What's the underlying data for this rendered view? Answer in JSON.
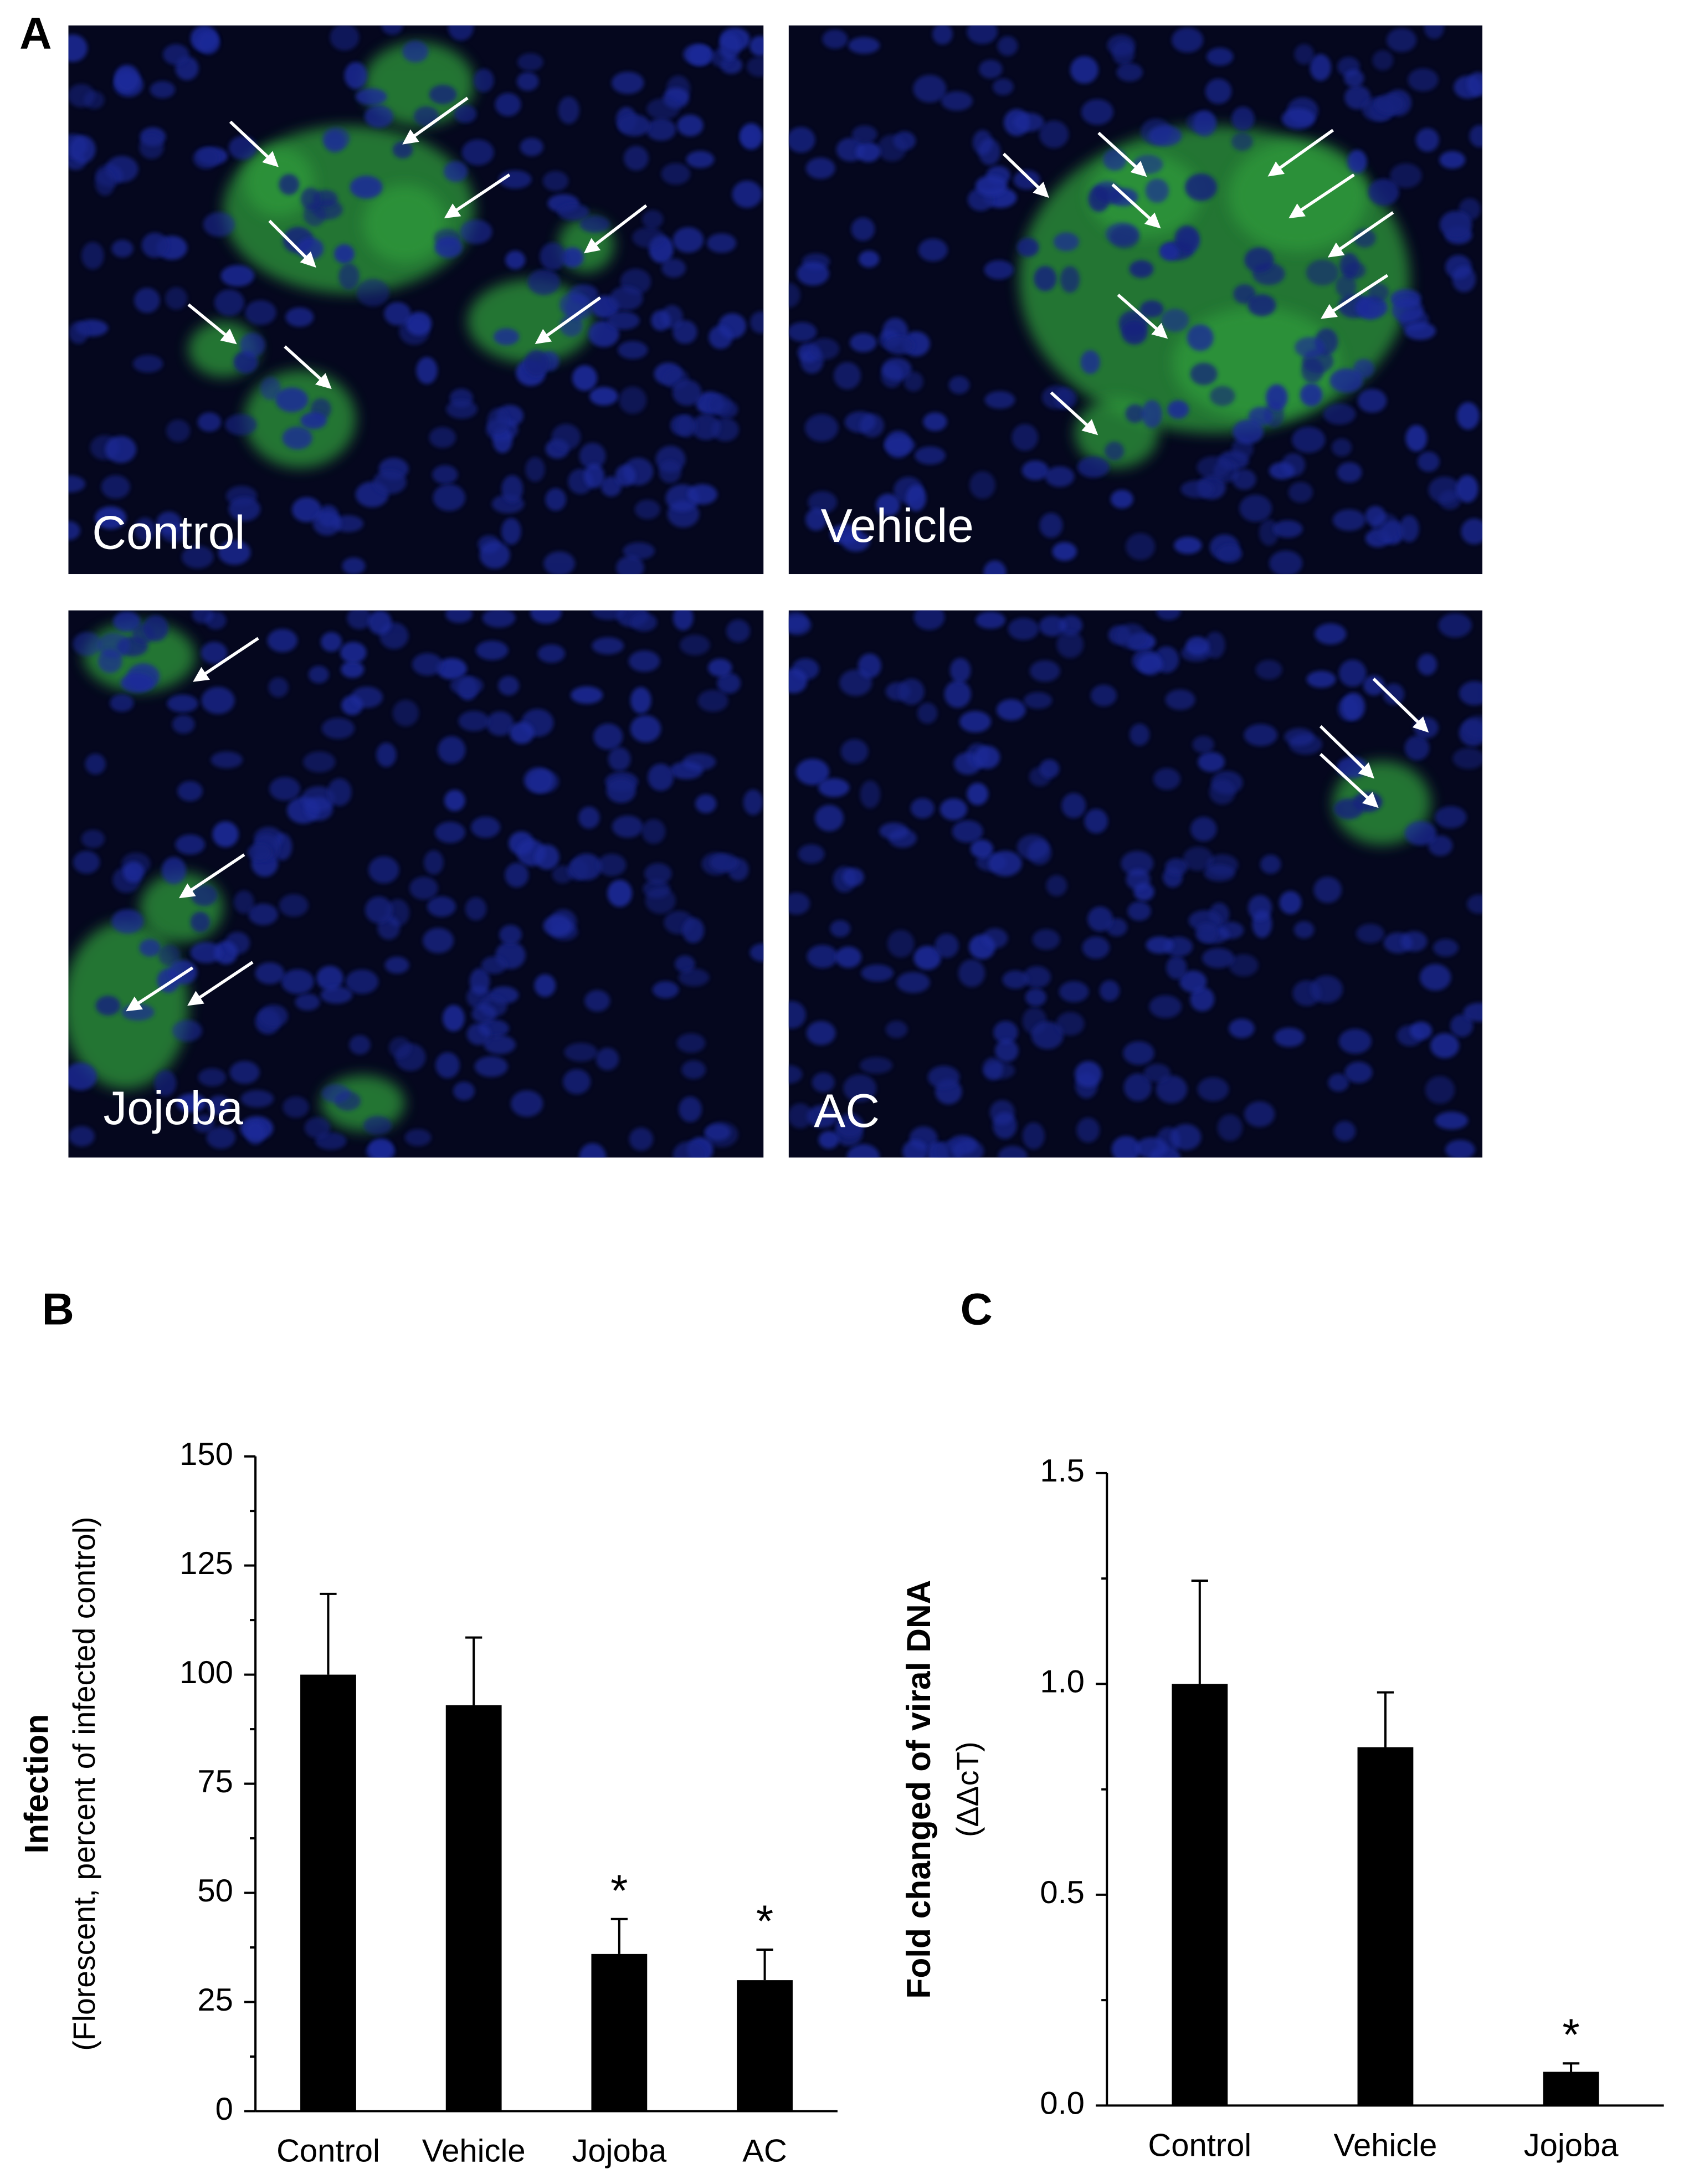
{
  "panel_labels": [
    "A",
    "B",
    "C"
  ],
  "micrographs": [
    "Control",
    "Vehicle",
    "Jojoba",
    "AC"
  ],
  "chart_data": [
    {
      "type": "bar",
      "categories": [
        "Control",
        "Vehicle",
        "Jojoba",
        "AC"
      ],
      "values": [
        100,
        93,
        36,
        30
      ],
      "errors": [
        18.5,
        15.5,
        8,
        7
      ],
      "annotations": [
        null,
        null,
        "*",
        "*"
      ],
      "color": "#000000",
      "y_label": "Infection",
      "y_sublabel": "(Florescent, percent of infected control)",
      "ylim": [
        0,
        150
      ],
      "yticks": [
        0,
        25,
        50,
        75,
        100,
        125,
        150
      ]
    },
    {
      "type": "bar",
      "categories": [
        "Control",
        "Vehicle",
        "Jojoba"
      ],
      "values": [
        1.0,
        0.85,
        0.08
      ],
      "errors": [
        0.245,
        0.13,
        0.02
      ],
      "annotations": [
        null,
        null,
        "*"
      ],
      "color": "#000000",
      "y_label": "Fold changed of viral DNA",
      "y_sublabel": "(ΔΔcT)",
      "ylim": [
        0,
        1.5
      ],
      "yticks": [
        {
          "value": 0,
          "label": "0.0"
        },
        {
          "value": 0.5,
          "label": "0.5"
        },
        {
          "value": 1,
          "label": "1.0"
        },
        {
          "value": 1.5,
          "label": "1.5"
        }
      ]
    }
  ]
}
